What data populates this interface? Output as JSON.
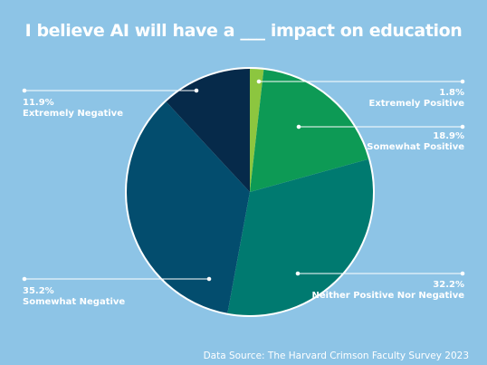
{
  "chart_data": {
    "type": "pie",
    "title": "I believe AI will have a ___ impact on education",
    "source": "Data Source: The Harvard Crimson Faculty Survey 2023",
    "slices": [
      {
        "label": "Extremely Positive",
        "value": 1.8,
        "value_label": "1.8%",
        "color": "#8cc63f"
      },
      {
        "label": "Somewhat Positive",
        "value": 18.9,
        "value_label": "18.9%",
        "color": "#0d9a55"
      },
      {
        "label": "Neither Positive Nor Negative",
        "value": 32.2,
        "value_label": "32.2%",
        "color": "#007a70"
      },
      {
        "label": "Somewhat Negative",
        "value": 35.2,
        "value_label": "35.2%",
        "color": "#034d6e"
      },
      {
        "label": "Extremely Negative",
        "value": 11.9,
        "value_label": "11.9%",
        "color": "#062a4a"
      }
    ],
    "background": "#8dc4e6",
    "border_color": "#ffffff"
  }
}
